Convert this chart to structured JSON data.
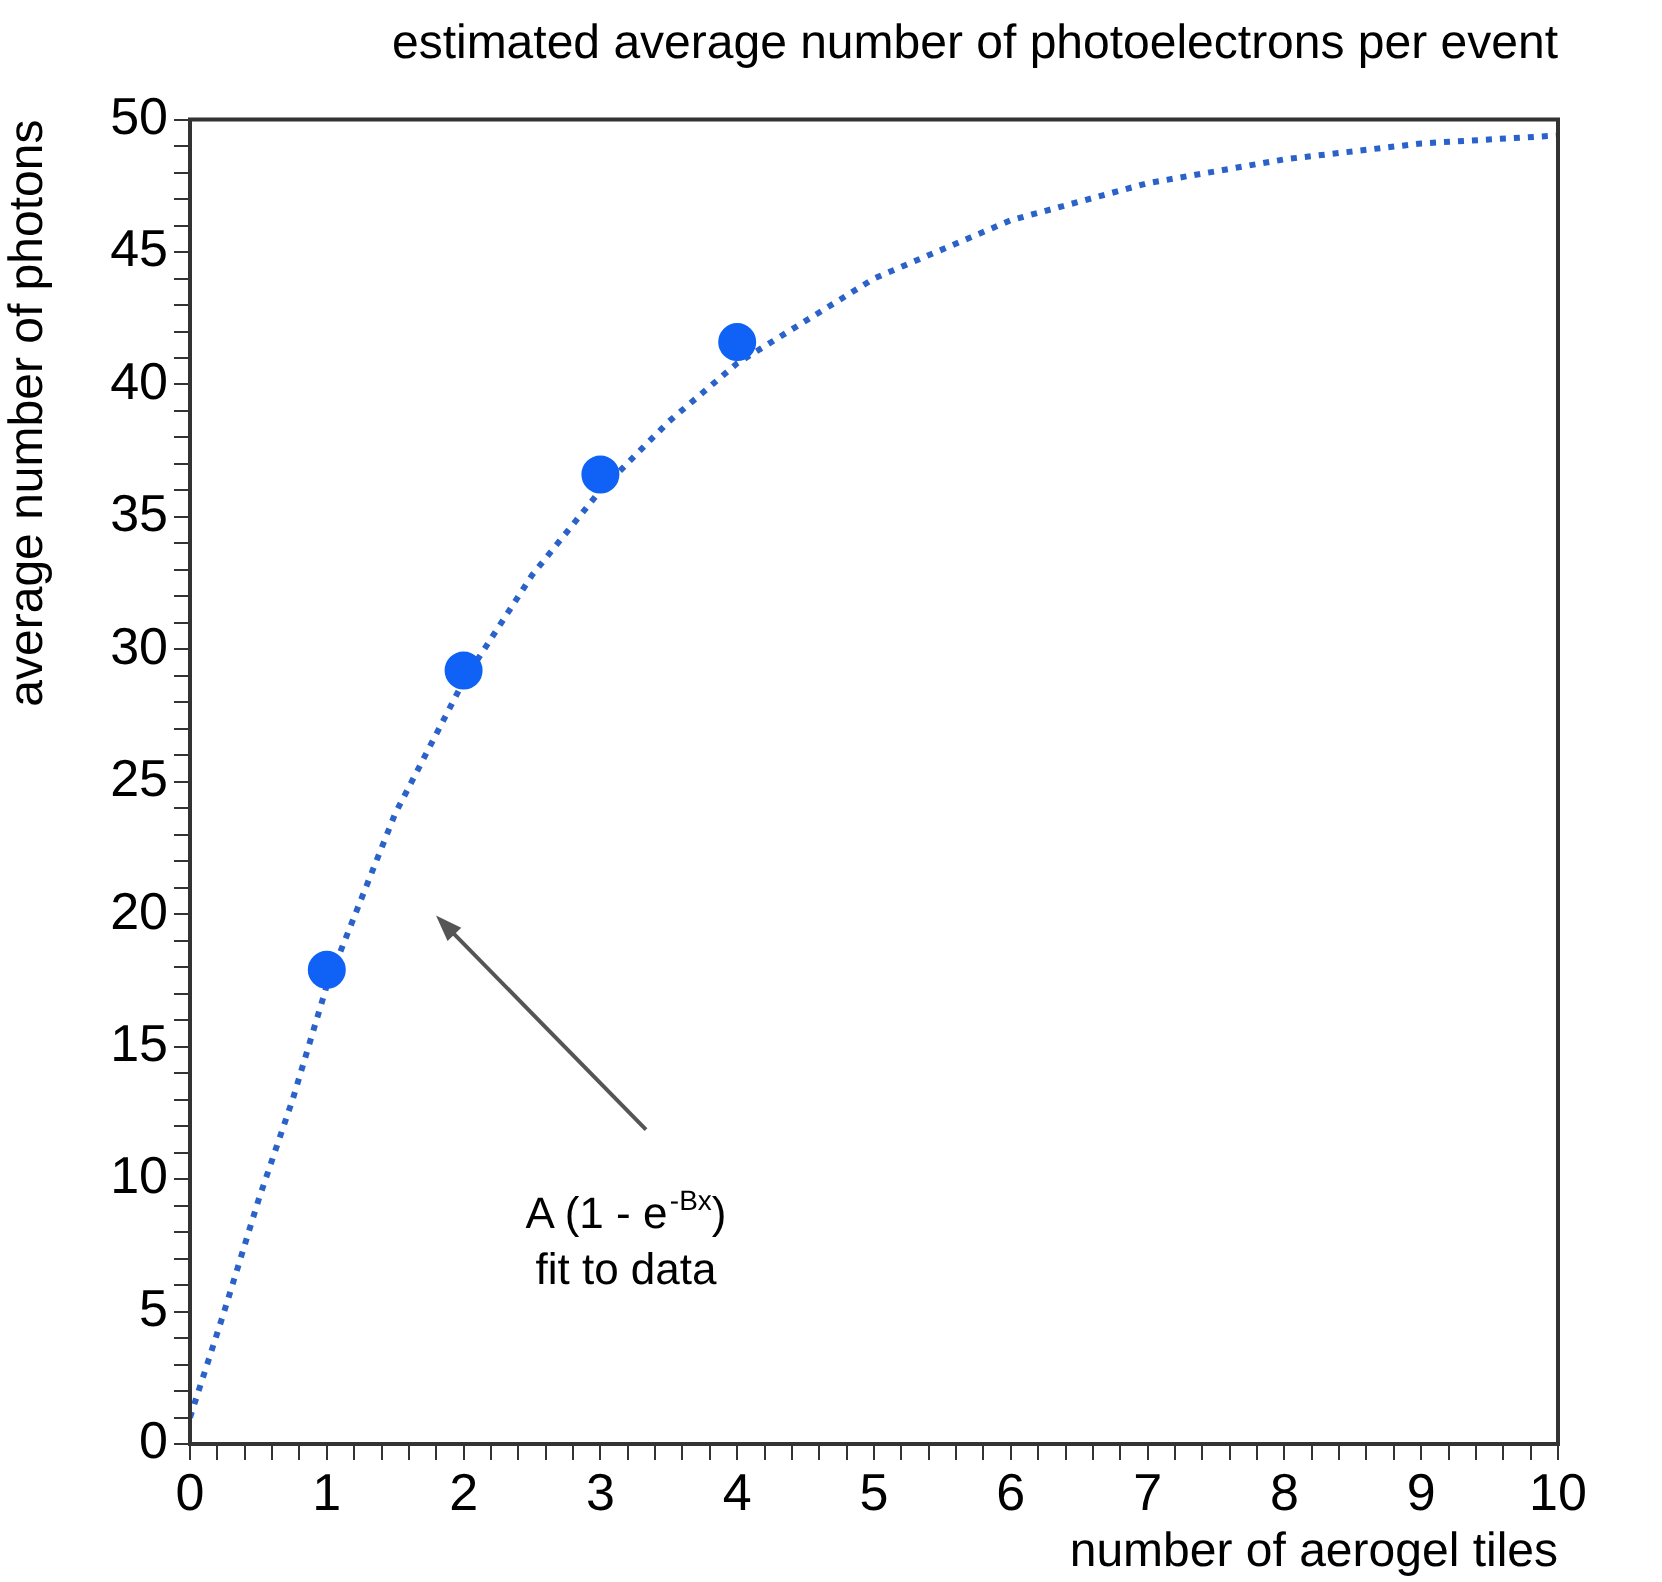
{
  "chart_data": {
    "type": "scatter",
    "title": "estimated average number of photoelectrons per event",
    "xlabel": "number of aerogel tiles",
    "ylabel": "average number of photons",
    "xlim": [
      0,
      10
    ],
    "ylim": [
      0,
      50
    ],
    "grid": false,
    "legend": false,
    "marker": "circle",
    "xticks": [
      0,
      {
        "value": 0.2,
        "label": null
      },
      {
        "value": 0.4,
        "label": null
      },
      {
        "value": 0.6,
        "label": null
      },
      {
        "value": 0.8,
        "label": null
      },
      1,
      {
        "value": 1.2,
        "label": null
      },
      {
        "value": 1.4,
        "label": null
      },
      {
        "value": 1.6,
        "label": null
      },
      {
        "value": 1.8,
        "label": null
      },
      2,
      {
        "value": 2.2,
        "label": null
      },
      {
        "value": 2.4,
        "label": null
      },
      {
        "value": 2.6,
        "label": null
      },
      {
        "value": 2.8,
        "label": null
      },
      3,
      {
        "value": 3.2,
        "label": null
      },
      {
        "value": 3.4,
        "label": null
      },
      {
        "value": 3.6,
        "label": null
      },
      {
        "value": 3.8,
        "label": null
      },
      4,
      {
        "value": 4.2,
        "label": null
      },
      {
        "value": 4.4,
        "label": null
      },
      {
        "value": 4.6,
        "label": null
      },
      {
        "value": 4.8,
        "label": null
      },
      5,
      {
        "value": 5.2,
        "label": null
      },
      {
        "value": 5.4,
        "label": null
      },
      {
        "value": 5.6,
        "label": null
      },
      {
        "value": 5.8,
        "label": null
      },
      6,
      {
        "value": 6.2,
        "label": null
      },
      {
        "value": 6.4,
        "label": null
      },
      {
        "value": 6.6,
        "label": null
      },
      {
        "value": 6.8,
        "label": null
      },
      7,
      {
        "value": 7.2,
        "label": null
      },
      {
        "value": 7.4,
        "label": null
      },
      {
        "value": 7.6,
        "label": null
      },
      {
        "value": 7.8,
        "label": null
      },
      8,
      {
        "value": 8.2,
        "label": null
      },
      {
        "value": 8.4,
        "label": null
      },
      {
        "value": 8.6,
        "label": null
      },
      {
        "value": 8.8,
        "label": null
      },
      9,
      {
        "value": 9.2,
        "label": null
      },
      {
        "value": 9.4,
        "label": null
      },
      {
        "value": 9.6,
        "label": null
      },
      {
        "value": 9.8,
        "label": null
      },
      10
    ],
    "yticks": [
      0,
      {
        "value": 1,
        "label": null
      },
      {
        "value": 2,
        "label": null
      },
      {
        "value": 3,
        "label": null
      },
      {
        "value": 4,
        "label": null
      },
      5,
      {
        "value": 6,
        "label": null
      },
      {
        "value": 7,
        "label": null
      },
      {
        "value": 8,
        "label": null
      },
      {
        "value": 9,
        "label": null
      },
      10,
      {
        "value": 11,
        "label": null
      },
      {
        "value": 12,
        "label": null
      },
      {
        "value": 13,
        "label": null
      },
      {
        "value": 14,
        "label": null
      },
      15,
      {
        "value": 16,
        "label": null
      },
      {
        "value": 17,
        "label": null
      },
      {
        "value": 18,
        "label": null
      },
      {
        "value": 19,
        "label": null
      },
      20,
      {
        "value": 21,
        "label": null
      },
      {
        "value": 22,
        "label": null
      },
      {
        "value": 23,
        "label": null
      },
      {
        "value": 24,
        "label": null
      },
      25,
      {
        "value": 26,
        "label": null
      },
      {
        "value": 27,
        "label": null
      },
      {
        "value": 28,
        "label": null
      },
      {
        "value": 29,
        "label": null
      },
      30,
      {
        "value": 31,
        "label": null
      },
      {
        "value": 32,
        "label": null
      },
      {
        "value": 33,
        "label": null
      },
      {
        "value": 34,
        "label": null
      },
      35,
      {
        "value": 36,
        "label": null
      },
      {
        "value": 37,
        "label": null
      },
      {
        "value": 38,
        "label": null
      },
      {
        "value": 39,
        "label": null
      },
      40,
      {
        "value": 41,
        "label": null
      },
      {
        "value": 42,
        "label": null
      },
      {
        "value": 43,
        "label": null
      },
      {
        "value": 44,
        "label": null
      },
      45,
      {
        "value": 46,
        "label": null
      },
      {
        "value": 47,
        "label": null
      },
      {
        "value": 48,
        "label": null
      },
      {
        "value": 49,
        "label": null
      },
      50
    ],
    "series": [
      {
        "color": "#0f62f5",
        "x": [
          1,
          2,
          3,
          4
        ],
        "values": [
          17.9,
          29.2,
          36.6,
          41.6
        ]
      },
      {
        "type": "line",
        "color": "#2a62c9",
        "marker": "none",
        "line_style": "dotted",
        "x": [
          0,
          0.25,
          0.5,
          0.75,
          1,
          1.5,
          2,
          2.5,
          3,
          3.5,
          4,
          5,
          6,
          7,
          8,
          9,
          10
        ],
        "values": [
          1,
          5,
          9.2,
          13,
          17.3,
          23.8,
          28.8,
          32.8,
          36,
          38.6,
          40.8,
          44,
          46.2,
          47.6,
          48.5,
          49.1,
          49.4
        ]
      }
    ],
    "annotations": [
      "A (1 - e$^{-Bx}$)\nfit to data"
    ]
  }
}
